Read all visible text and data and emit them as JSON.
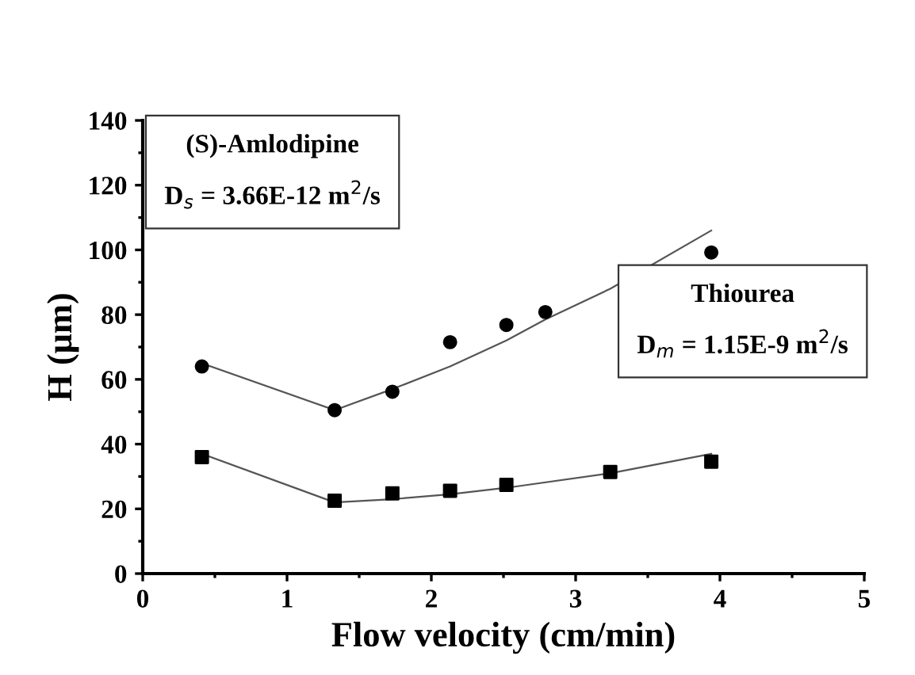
{
  "chart_data": {
    "type": "scatter",
    "xlabel": "Flow velocity (cm/min)",
    "ylabel": "H (μm)",
    "xlim": [
      0,
      5
    ],
    "ylim": [
      0,
      140
    ],
    "xticks": [
      0,
      1,
      2,
      3,
      4,
      5
    ],
    "yticks": [
      0,
      20,
      40,
      60,
      80,
      100,
      120,
      140
    ],
    "grid": false,
    "legend": false,
    "series": [
      {
        "marker": "circle",
        "color": "#000000",
        "x": [
          0.41,
          1.33,
          1.73,
          2.13,
          2.52,
          2.79,
          3.94
        ],
        "values": [
          64,
          50.5,
          56.2,
          71.5,
          76.8,
          80.8,
          99.2
        ]
      },
      {
        "marker": "square",
        "color": "#000000",
        "x": [
          0.41,
          1.33,
          1.73,
          2.13,
          2.52,
          3.24,
          3.94
        ],
        "values": [
          36,
          22.5,
          24.8,
          25.6,
          27.4,
          31.4,
          34.6
        ]
      },
      {
        "type": "line",
        "marker": "none",
        "line_style": "solid",
        "color": "#555555",
        "x": [
          0.41,
          1.33,
          1.73,
          2.13,
          2.52,
          2.79,
          3.24,
          3.94
        ],
        "values": [
          65,
          50.5,
          57,
          64,
          72,
          78.5,
          88,
          106
        ]
      },
      {
        "type": "line",
        "marker": "none",
        "line_style": "solid",
        "color": "#555555",
        "x": [
          0.41,
          1.33,
          1.73,
          2.13,
          2.52,
          3.24,
          3.94
        ],
        "values": [
          37,
          22,
          23,
          24.5,
          26.5,
          31,
          37
        ]
      }
    ],
    "annotations": [
      "(S)-Amlodipine\nD$_{s}$ = 3.66E-12 m$^{2}$/s",
      "Thiourea\nD$_{m}$ = 1.15E-9 m$^{2}$/s"
    ]
  }
}
